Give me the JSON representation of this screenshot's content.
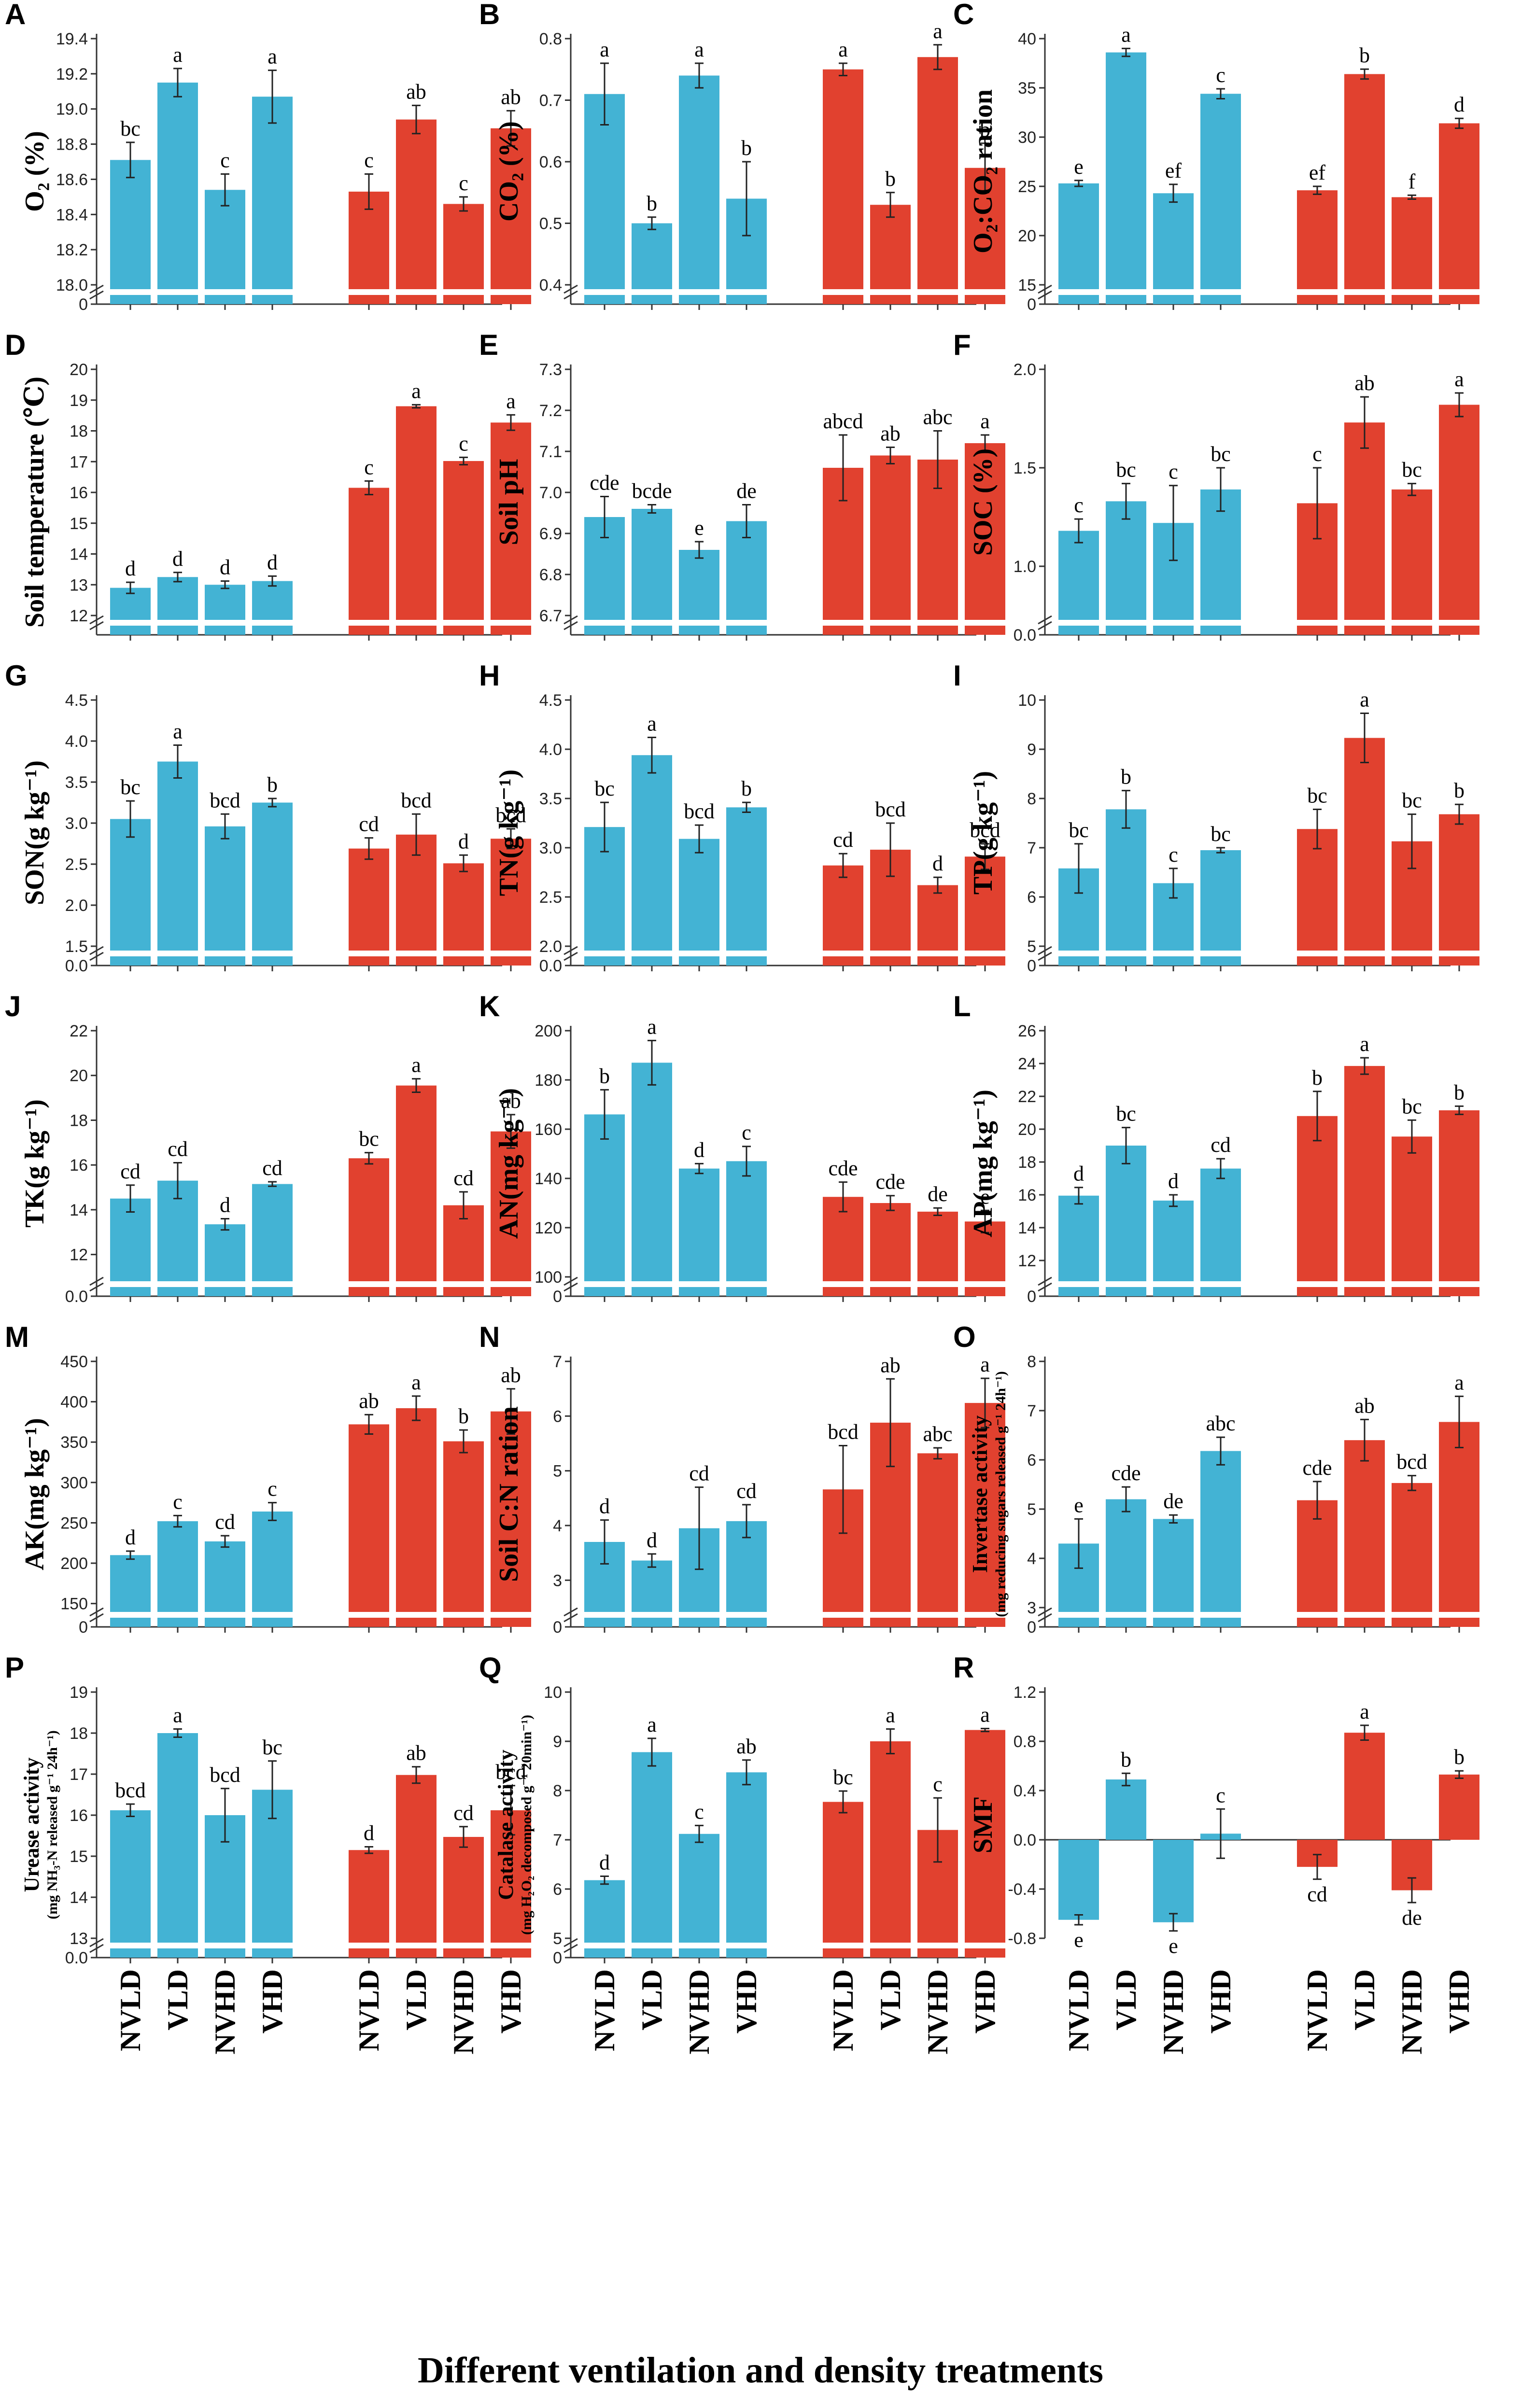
{
  "figure": {
    "xlabel": "Different ventilation and density treatments",
    "colors": {
      "group1": "#43B3D4",
      "group2": "#E1412F",
      "axis": "#333333",
      "error": "#222222"
    }
  },
  "chart_data": [
    {
      "panel": "A",
      "type": "bar",
      "ylabel": "O₂ (%)",
      "ylim": [
        18.0,
        19.4
      ],
      "yticks": [
        "18.0",
        "18.2",
        "18.4",
        "18.6",
        "18.8",
        "19.0",
        "19.2",
        "19.4"
      ],
      "zero_label": "0",
      "categories": [
        "NVLD",
        "VLD",
        "NVHD",
        "VHD",
        "NVLD",
        "VLD",
        "NVHD",
        "VHD"
      ],
      "values": [
        18.71,
        19.15,
        18.54,
        19.07,
        18.53,
        18.94,
        18.46,
        18.89
      ],
      "errors": [
        0.1,
        0.08,
        0.09,
        0.15,
        0.1,
        0.08,
        0.04,
        0.1
      ],
      "letters": [
        "bc",
        "a",
        "c",
        "a",
        "c",
        "ab",
        "c",
        "ab"
      ]
    },
    {
      "panel": "B",
      "type": "bar",
      "ylabel": "CO₂ (%)",
      "ylim": [
        0.4,
        0.8
      ],
      "yticks": [
        "0.4",
        "0.5",
        "0.6",
        "0.7",
        "0.8"
      ],
      "zero_label": "",
      "categories": [
        "NVLD",
        "VLD",
        "NVHD",
        "VHD",
        "NVLD",
        "VLD",
        "NVHD",
        "VHD"
      ],
      "values": [
        0.71,
        0.5,
        0.74,
        0.54,
        0.75,
        0.53,
        0.77,
        0.59
      ],
      "errors": [
        0.05,
        0.01,
        0.02,
        0.06,
        0.01,
        0.02,
        0.02,
        0.04
      ],
      "letters": [
        "a",
        "b",
        "a",
        "b",
        "a",
        "b",
        "a",
        "b"
      ]
    },
    {
      "panel": "C",
      "type": "bar",
      "ylabel": "O₂:CO₂ ration",
      "ylim": [
        15,
        40
      ],
      "yticks": [
        "15",
        "20",
        "25",
        "30",
        "35",
        "40"
      ],
      "zero_label": "0",
      "categories": [
        "NVLD",
        "VLD",
        "NVHD",
        "VHD",
        "NVLD",
        "VLD",
        "NVHD",
        "VHD"
      ],
      "values": [
        25.3,
        38.6,
        24.3,
        34.4,
        24.6,
        36.4,
        23.9,
        31.4
      ],
      "errors": [
        0.3,
        0.4,
        0.9,
        0.5,
        0.4,
        0.5,
        0.2,
        0.5
      ],
      "letters": [
        "e",
        "a",
        "ef",
        "c",
        "ef",
        "b",
        "f",
        "d"
      ]
    },
    {
      "panel": "D",
      "type": "bar",
      "ylabel": "Soil temperature (℃)",
      "ylim": [
        12,
        20
      ],
      "yticks": [
        "12",
        "13",
        "14",
        "15",
        "16",
        "17",
        "18",
        "19",
        "20"
      ],
      "zero_label": "",
      "categories": [
        "NVLD",
        "VLD",
        "NVHD",
        "VHD",
        "NVLD",
        "VLD",
        "NVHD",
        "VHD"
      ],
      "values": [
        12.9,
        13.25,
        13.0,
        13.12,
        16.15,
        18.8,
        17.02,
        18.27
      ],
      "errors": [
        0.18,
        0.15,
        0.12,
        0.16,
        0.22,
        0.05,
        0.12,
        0.25
      ],
      "letters": [
        "d",
        "d",
        "d",
        "d",
        "c",
        "a",
        "c",
        "a"
      ]
    },
    {
      "panel": "E",
      "type": "bar",
      "ylabel": "Soil pH",
      "ylim": [
        6.7,
        7.3
      ],
      "yticks": [
        "6.7",
        "6.8",
        "6.9",
        "7.0",
        "7.1",
        "7.2",
        "7.3"
      ],
      "zero_label": "",
      "categories": [
        "NVLD",
        "VLD",
        "NVHD",
        "VHD",
        "NVLD",
        "VLD",
        "NVHD",
        "VHD"
      ],
      "values": [
        6.94,
        6.96,
        6.86,
        6.93,
        7.06,
        7.09,
        7.08,
        7.12
      ],
      "errors": [
        0.05,
        0.01,
        0.02,
        0.04,
        0.08,
        0.02,
        0.07,
        0.02
      ],
      "letters": [
        "cde",
        "bcde",
        "e",
        "de",
        "abcd",
        "ab",
        "abc",
        "a"
      ]
    },
    {
      "panel": "F",
      "type": "bar",
      "ylabel": "SOC (%)",
      "ylim": [
        0.75,
        2.0
      ],
      "yticks": [
        "1.0",
        "1.5",
        "2.0"
      ],
      "zero_label": "0.0",
      "categories": [
        "NVLD",
        "VLD",
        "NVHD",
        "VHD",
        "NVLD",
        "VLD",
        "NVHD",
        "VHD"
      ],
      "values": [
        1.18,
        1.33,
        1.22,
        1.39,
        1.32,
        1.73,
        1.39,
        1.82
      ],
      "errors": [
        0.06,
        0.09,
        0.19,
        0.11,
        0.18,
        0.13,
        0.03,
        0.06
      ],
      "letters": [
        "c",
        "bc",
        "c",
        "bc",
        "c",
        "ab",
        "bc",
        "a"
      ]
    },
    {
      "panel": "G",
      "type": "bar",
      "ylabel": "SON(g kg⁻¹)",
      "ylim": [
        1.5,
        4.5
      ],
      "yticks": [
        "1.5",
        "2.0",
        "2.5",
        "3.0",
        "3.5",
        "4.0",
        "4.5"
      ],
      "zero_label": "0.0",
      "categories": [
        "NVLD",
        "VLD",
        "NVHD",
        "VHD",
        "NVLD",
        "VLD",
        "NVHD",
        "VHD"
      ],
      "values": [
        3.05,
        3.75,
        2.96,
        3.25,
        2.69,
        2.86,
        2.51,
        2.81
      ],
      "errors": [
        0.22,
        0.2,
        0.15,
        0.05,
        0.13,
        0.25,
        0.1,
        0.12
      ],
      "letters": [
        "bc",
        "a",
        "bcd",
        "b",
        "cd",
        "bcd",
        "d",
        "bcd"
      ]
    },
    {
      "panel": "H",
      "type": "bar",
      "ylabel": "TN(g kg⁻¹)",
      "ylim": [
        2.0,
        4.5
      ],
      "yticks": [
        "2.0",
        "2.5",
        "3.0",
        "3.5",
        "4.0",
        "4.5"
      ],
      "zero_label": "0.0",
      "categories": [
        "NVLD",
        "VLD",
        "NVHD",
        "VHD",
        "NVLD",
        "VLD",
        "NVHD",
        "VHD"
      ],
      "values": [
        3.21,
        3.94,
        3.09,
        3.41,
        2.82,
        2.98,
        2.62,
        2.91
      ],
      "errors": [
        0.25,
        0.18,
        0.14,
        0.05,
        0.12,
        0.27,
        0.08,
        0.13
      ],
      "letters": [
        "bc",
        "a",
        "bcd",
        "b",
        "cd",
        "bcd",
        "d",
        "bcd"
      ]
    },
    {
      "panel": "I",
      "type": "bar",
      "ylabel": "TP(g kg⁻¹)",
      "ylim": [
        5,
        10
      ],
      "yticks": [
        "5",
        "6",
        "7",
        "8",
        "9",
        "10"
      ],
      "zero_label": "0",
      "categories": [
        "NVLD",
        "VLD",
        "NVHD",
        "VHD",
        "NVLD",
        "VLD",
        "NVHD",
        "VHD"
      ],
      "values": [
        6.58,
        7.78,
        6.28,
        6.95,
        7.38,
        9.23,
        7.13,
        7.68
      ],
      "errors": [
        0.5,
        0.38,
        0.3,
        0.05,
        0.4,
        0.5,
        0.55,
        0.2
      ],
      "letters": [
        "bc",
        "b",
        "c",
        "bc",
        "bc",
        "a",
        "bc",
        "b"
      ]
    },
    {
      "panel": "J",
      "type": "bar",
      "ylabel": "TK(g kg⁻¹)",
      "ylim": [
        11,
        22
      ],
      "yticks": [
        "12",
        "14",
        "16",
        "18",
        "20",
        "22"
      ],
      "zero_label": "0.0",
      "categories": [
        "NVLD",
        "VLD",
        "NVHD",
        "VHD",
        "NVLD",
        "VLD",
        "NVHD",
        "VHD"
      ],
      "values": [
        14.5,
        15.3,
        13.35,
        15.15,
        16.3,
        19.55,
        14.2,
        17.5
      ],
      "errors": [
        0.6,
        0.8,
        0.25,
        0.1,
        0.25,
        0.3,
        0.6,
        0.75
      ],
      "letters": [
        "cd",
        "cd",
        "d",
        "cd",
        "bc",
        "a",
        "cd",
        "ab"
      ]
    },
    {
      "panel": "K",
      "type": "bar",
      "ylabel": "AN(mg kg⁻¹)",
      "ylim": [
        100,
        200
      ],
      "yticks": [
        "100",
        "120",
        "140",
        "160",
        "180",
        "200"
      ],
      "zero_label": "0",
      "categories": [
        "NVLD",
        "VLD",
        "NVHD",
        "VHD",
        "NVLD",
        "VLD",
        "NVHD",
        "VHD"
      ],
      "values": [
        166,
        187,
        144,
        147,
        132.5,
        130,
        126.5,
        122.5
      ],
      "errors": [
        10,
        9,
        2,
        6,
        6,
        3,
        1.5,
        4.5
      ],
      "letters": [
        "b",
        "a",
        "d",
        "c",
        "cde",
        "cde",
        "de",
        "e"
      ]
    },
    {
      "panel": "L",
      "type": "bar",
      "ylabel": "AP(mg kg⁻¹)",
      "ylim": [
        11,
        26
      ],
      "yticks": [
        "12",
        "14",
        "16",
        "18",
        "20",
        "22",
        "24",
        "26"
      ],
      "zero_label": "0",
      "categories": [
        "NVLD",
        "VLD",
        "NVHD",
        "VHD",
        "NVLD",
        "VLD",
        "NVHD",
        "VHD"
      ],
      "values": [
        15.95,
        19.0,
        15.65,
        17.6,
        20.8,
        23.85,
        19.55,
        21.15
      ],
      "errors": [
        0.5,
        1.1,
        0.35,
        0.6,
        1.5,
        0.5,
        1.0,
        0.25
      ],
      "letters": [
        "d",
        "bc",
        "d",
        "cd",
        "b",
        "a",
        "bc",
        "b"
      ]
    },
    {
      "panel": "M",
      "type": "bar",
      "ylabel": "AK(mg kg⁻¹)",
      "ylim": [
        145,
        450
      ],
      "yticks": [
        "150",
        "200",
        "250",
        "300",
        "350",
        "400",
        "450"
      ],
      "zero_label": "0",
      "categories": [
        "NVLD",
        "VLD",
        "NVHD",
        "VHD",
        "NVLD",
        "VLD",
        "NVHD",
        "VHD"
      ],
      "values": [
        210,
        252,
        227,
        264,
        372,
        392,
        351,
        388
      ],
      "errors": [
        5,
        7,
        7,
        11,
        12,
        15,
        14,
        28
      ],
      "letters": [
        "d",
        "c",
        "cd",
        "c",
        "ab",
        "a",
        "b",
        "ab"
      ]
    },
    {
      "panel": "N",
      "type": "bar",
      "ylabel": "Soil C:N ration",
      "ylim": [
        2.5,
        7.0
      ],
      "yticks": [
        "3",
        "4",
        "5",
        "6",
        "7"
      ],
      "zero_label": "0",
      "categories": [
        "NVLD",
        "VLD",
        "NVHD",
        "VHD",
        "NVLD",
        "VLD",
        "NVHD",
        "VHD"
      ],
      "values": [
        3.7,
        3.36,
        3.95,
        4.08,
        4.66,
        5.88,
        5.32,
        6.24
      ],
      "errors": [
        0.4,
        0.12,
        0.75,
        0.3,
        0.8,
        0.8,
        0.1,
        0.45
      ],
      "letters": [
        "d",
        "d",
        "cd",
        "cd",
        "bcd",
        "ab",
        "abc",
        "a"
      ]
    },
    {
      "panel": "O",
      "type": "bar",
      "ylabel": "Invertase activity",
      "ylabel_sub": "(mg reducing sugars released g⁻¹ 24h⁻¹)",
      "ylim": [
        3,
        8
      ],
      "yticks": [
        "3",
        "4",
        "5",
        "6",
        "7",
        "8"
      ],
      "zero_label": "0",
      "categories": [
        "NVLD",
        "VLD",
        "NVHD",
        "VHD",
        "NVLD",
        "VLD",
        "NVHD",
        "VHD"
      ],
      "values": [
        4.3,
        5.2,
        4.8,
        6.18,
        5.18,
        6.4,
        5.53,
        6.77
      ],
      "errors": [
        0.5,
        0.25,
        0.08,
        0.28,
        0.38,
        0.42,
        0.15,
        0.52
      ],
      "letters": [
        "e",
        "cde",
        "de",
        "abc",
        "cde",
        "ab",
        "bcd",
        "a"
      ]
    },
    {
      "panel": "P",
      "type": "bar",
      "ylabel": "Urease activity",
      "ylabel_sub": "(mg NH₃-N released g⁻¹ 24h⁻¹)",
      "ylim": [
        13,
        19
      ],
      "yticks": [
        "13",
        "14",
        "15",
        "16",
        "17",
        "18",
        "19"
      ],
      "zero_label": "0.0",
      "categories": [
        "NVLD",
        "VLD",
        "NVHD",
        "VHD",
        "NVLD",
        "VLD",
        "NVHD",
        "VHD"
      ],
      "values": [
        16.12,
        18.0,
        16.0,
        16.62,
        15.15,
        16.98,
        15.47,
        16.12
      ],
      "errors": [
        0.15,
        0.1,
        0.65,
        0.7,
        0.08,
        0.2,
        0.25,
        0.6
      ],
      "letters": [
        "bcd",
        "a",
        "bcd",
        "bc",
        "d",
        "ab",
        "cd",
        "bcd"
      ]
    },
    {
      "panel": "Q",
      "type": "bar",
      "ylabel": "Catalase activity",
      "ylabel_sub": "(mg H₂O₂ decomposed g⁻¹ 20min⁻¹)",
      "ylim": [
        5,
        10
      ],
      "yticks": [
        "5",
        "6",
        "7",
        "8",
        "9",
        "10"
      ],
      "zero_label": "0",
      "categories": [
        "NVLD",
        "VLD",
        "NVHD",
        "VHD",
        "NVLD",
        "VLD",
        "NVHD",
        "VHD"
      ],
      "values": [
        6.18,
        8.78,
        7.12,
        8.37,
        7.77,
        9.0,
        7.2,
        9.23
      ],
      "errors": [
        0.08,
        0.28,
        0.17,
        0.25,
        0.22,
        0.25,
        0.65,
        0.03
      ],
      "letters": [
        "d",
        "a",
        "c",
        "ab",
        "bc",
        "a",
        "c",
        "a"
      ]
    },
    {
      "panel": "R",
      "type": "bar",
      "ylabel": "SMF",
      "ylim": [
        -0.8,
        1.2
      ],
      "yticks": [
        "-0.8",
        "-0.4",
        "0.0",
        "0.4",
        "0.8",
        "1.2"
      ],
      "zero_label": "",
      "categories": [
        "NVLD",
        "VLD",
        "NVHD",
        "VHD",
        "NVLD",
        "VLD",
        "NVHD",
        "VHD"
      ],
      "values": [
        -0.65,
        0.49,
        -0.67,
        0.05,
        -0.22,
        0.87,
        -0.41,
        0.53
      ],
      "errors": [
        0.04,
        0.05,
        0.07,
        0.2,
        0.1,
        0.06,
        0.1,
        0.03
      ],
      "letters": [
        "e",
        "b",
        "e",
        "c",
        "cd",
        "a",
        "de",
        "b"
      ]
    }
  ]
}
